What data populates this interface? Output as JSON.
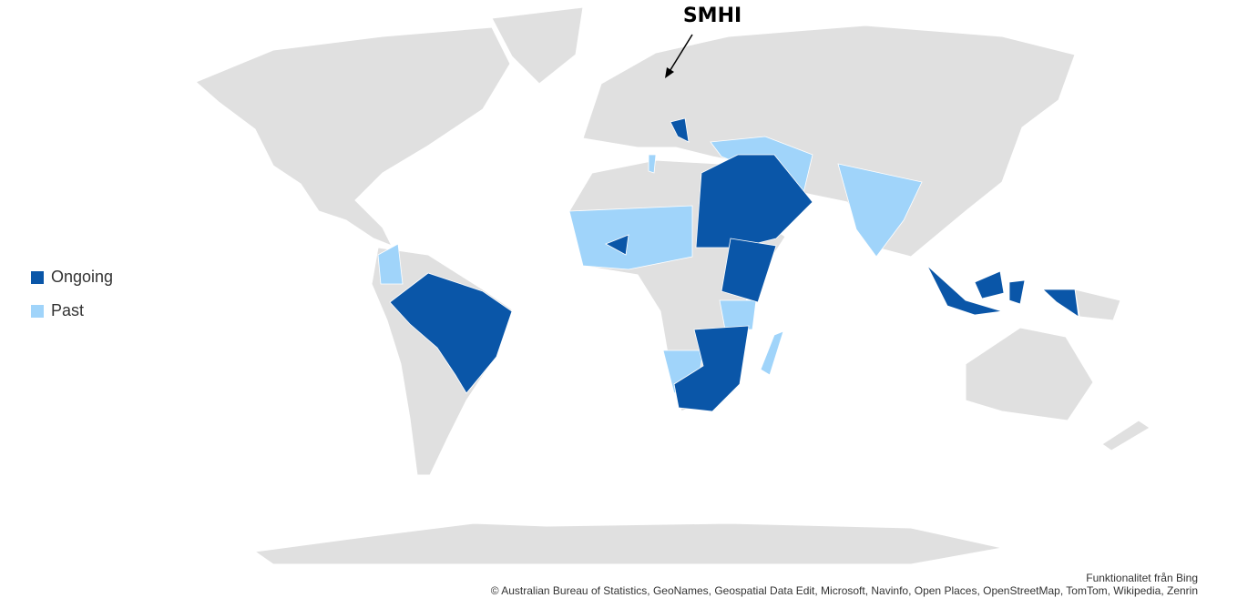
{
  "legend": {
    "items": [
      {
        "name": "Ongoing",
        "color": "#0a56a8"
      },
      {
        "name": "Past",
        "color": "#a0d4fa"
      }
    ]
  },
  "annotation": "SMHI",
  "credits": {
    "provider": "Funktionalitet från Bing",
    "sources": "© Australian Bureau of Statistics, GeoNames, Geospatial Data Edit, Microsoft, Navinfo, Open Places, OpenStreetMap, TomTom, Wikipedia, Zenrin"
  }
}
